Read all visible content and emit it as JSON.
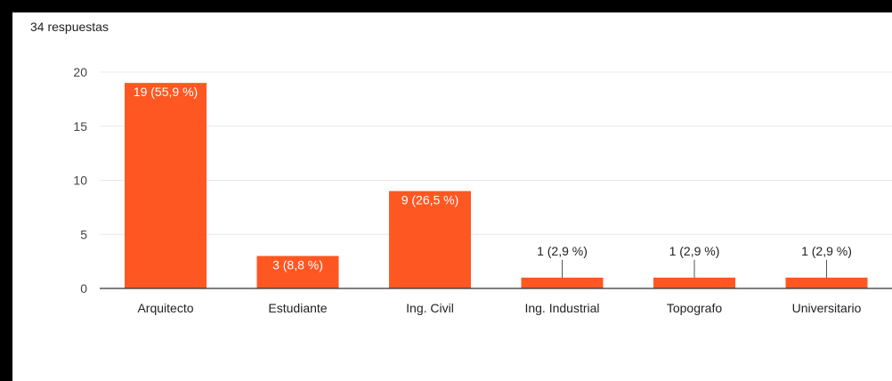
{
  "summary": {
    "responses_label": "34 respuestas"
  },
  "colors": {
    "bar": "#ff5722",
    "grid": "#e8e8e8",
    "axis": "#333333",
    "label_inside": "#ffffff",
    "label_outside": "#222222"
  },
  "chart_data": {
    "type": "bar",
    "categories": [
      "Arquitecto",
      "Estudiante",
      "Ing. Civil",
      "Ing. Industrial",
      "Topografo",
      "Universitario"
    ],
    "values": [
      19,
      3,
      9,
      1,
      1,
      1
    ],
    "data_labels": [
      "19 (55,9 %)",
      "3 (8,8 %)",
      "9 (26,5 %)",
      "1 (2,9 %)",
      "1 (2,9 %)",
      "1 (2,9 %)"
    ],
    "yticks": [
      0,
      5,
      10,
      15,
      20
    ],
    "ylim": [
      0,
      20
    ],
    "grid": true,
    "legend": false
  }
}
